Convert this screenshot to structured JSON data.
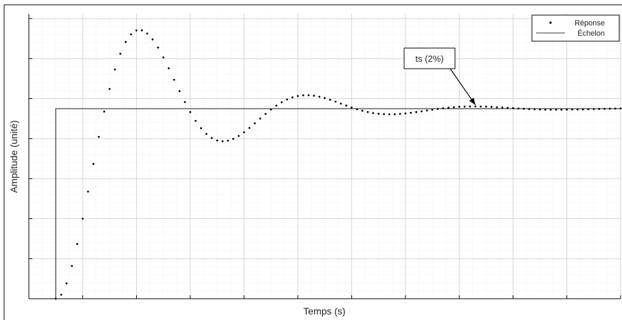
{
  "chart_data": {
    "type": "line",
    "xlabel": "Temps (s)",
    "ylabel": "Amplitude (unité)",
    "xlim": [
      0,
      22
    ],
    "ylim": [
      0,
      1.5
    ],
    "grid": true,
    "minor_grid": true,
    "legend_position": "top-right",
    "annotation": {
      "text": "ts (2%)",
      "x": 16.6,
      "y": 1.02
    },
    "series": [
      {
        "name": "Réponse",
        "style": "dotted-markers",
        "color": "#000000",
        "model": {
          "t0": 1.0,
          "zeta": 0.27,
          "wn": 1.05,
          "final": 1.0,
          "dt": 0.2,
          "t_end": 22
        }
      },
      {
        "name": "Échelon",
        "style": "solid-line",
        "color": "#333333",
        "x": [
          0,
          1,
          1,
          22
        ],
        "y": [
          0,
          0,
          1,
          1
        ]
      }
    ]
  }
}
